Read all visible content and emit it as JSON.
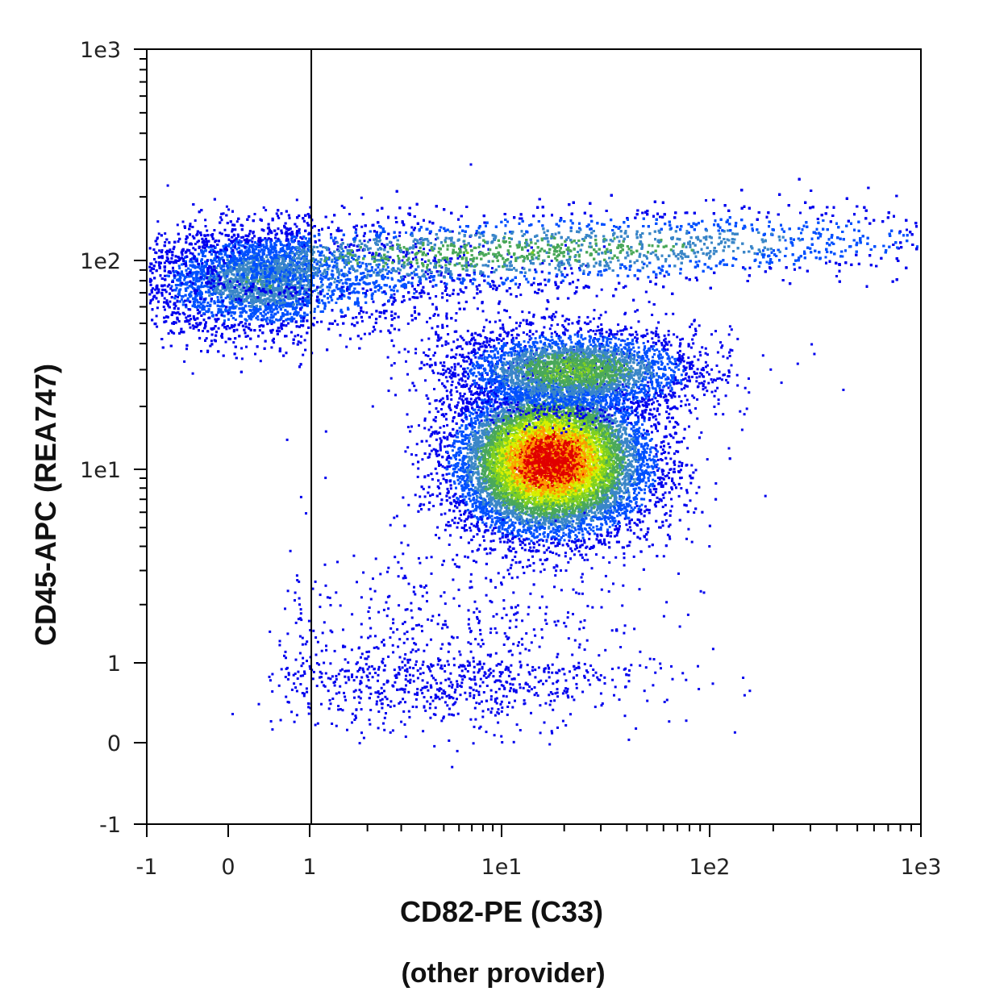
{
  "chart_data": {
    "type": "scatter",
    "subtype": "flow-cytometry density dot plot",
    "xlabel": "CD82-PE (C33)",
    "xlabel_sub": "(other provider)",
    "ylabel": "CD45-APC (REA747)",
    "x_scale": "biexponential",
    "y_scale": "biexponential",
    "xlim": [
      -1,
      1000
    ],
    "ylim": [
      -1,
      1000
    ],
    "x_ticks": [
      {
        "value": -1,
        "label": "-1"
      },
      {
        "value": 0,
        "label": "0"
      },
      {
        "value": 1,
        "label": "1"
      },
      {
        "value": 10,
        "label": "1e1"
      },
      {
        "value": 100,
        "label": "1e2"
      },
      {
        "value": 1000,
        "label": "1e3"
      }
    ],
    "y_ticks": [
      {
        "value": -1,
        "label": "-1"
      },
      {
        "value": 0,
        "label": "0"
      },
      {
        "value": 1,
        "label": "1"
      },
      {
        "value": 10,
        "label": "1e1"
      },
      {
        "value": 100,
        "label": "1e2"
      },
      {
        "value": 1000,
        "label": "1e3"
      }
    ],
    "gate_line_x": 1.02,
    "colormap": [
      "#0000ee",
      "#0050ff",
      "#3a86c8",
      "#4aa85a",
      "#7fd020",
      "#d8f000",
      "#ff9a00",
      "#e00000"
    ],
    "populations": [
      {
        "name": "CD82- CD45 bright",
        "center_x": 0.4,
        "center_y": 80,
        "sd_x": 0.75,
        "sd_y": 0.13,
        "count": 7000,
        "density": 0.35
      },
      {
        "name": "CD82+ CD45 bright band",
        "center_x": 9,
        "center_y": 110,
        "sd_x": 0.9,
        "sd_y": 0.09,
        "count": 12000,
        "density": 0.45
      },
      {
        "name": "CD82+ CD45 dim (main)",
        "center_x": 17,
        "center_y": 11,
        "sd_x": 0.24,
        "sd_y": 0.19,
        "count": 14000,
        "density": 1.0
      },
      {
        "name": "CD82+ CD45 intermediate",
        "center_x": 22,
        "center_y": 30,
        "sd_x": 0.3,
        "sd_y": 0.1,
        "count": 3500,
        "density": 0.5
      },
      {
        "name": "CD45 negative scatter",
        "center_x": 5,
        "center_y": 0.9,
        "sd_x": 0.5,
        "sd_y": 0.35,
        "count": 1100,
        "density": 0.1
      }
    ]
  }
}
